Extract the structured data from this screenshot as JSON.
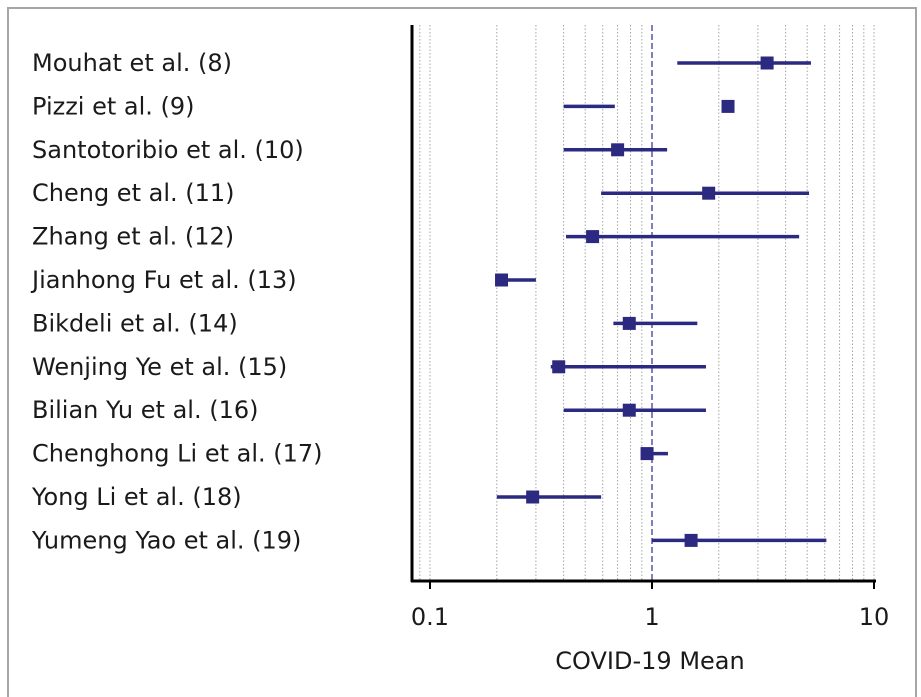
{
  "chart_data": {
    "type": "forest",
    "xlabel": "COVID-19 Mean",
    "x_scale": "log",
    "xlim": [
      0.07,
      14
    ],
    "reference_line": 1,
    "x_ticks": [
      {
        "value": 0.1,
        "label": "0.1"
      },
      {
        "value": 1,
        "label": "1"
      },
      {
        "value": 10,
        "label": "10"
      }
    ],
    "grid": "vertical minor log gridlines",
    "colors": {
      "marker": "#2b2a80",
      "axis": "#000000",
      "grid": "#9a9a9a",
      "reference": "#4a4aa0"
    },
    "studies": [
      {
        "label": "Mouhat et al. (8)",
        "estimate": 3.3,
        "ci_low": 1.3,
        "ci_high": 5.2
      },
      {
        "label": "Pizzi et al. (9)",
        "estimate": 2.2,
        "ci_low": 0.4,
        "ci_high": 0.68
      },
      {
        "label": "Santotoribio et al. (10)",
        "estimate": 0.7,
        "ci_low": 0.4,
        "ci_high": 1.17
      },
      {
        "label": "Cheng et al. (11)",
        "estimate": 1.8,
        "ci_low": 0.59,
        "ci_high": 5.1
      },
      {
        "label": "Zhang et al. (12)",
        "estimate": 0.54,
        "ci_low": 0.41,
        "ci_high": 4.6
      },
      {
        "label": "Jianhong Fu et al. (13)",
        "estimate": 0.21,
        "ci_low": 0.2,
        "ci_high": 0.3
      },
      {
        "label": "Bikdeli et al. (14)",
        "estimate": 0.79,
        "ci_low": 0.67,
        "ci_high": 1.6
      },
      {
        "label": "Wenjing Ye et al. (15)",
        "estimate": 0.38,
        "ci_low": 0.35,
        "ci_high": 1.75
      },
      {
        "label": "Bilian Yu et al. (16)",
        "estimate": 0.79,
        "ci_low": 0.4,
        "ci_high": 1.75
      },
      {
        "label": "Chenghong Li et al. (17)",
        "estimate": 0.95,
        "ci_low": 0.9,
        "ci_high": 1.18
      },
      {
        "label": "Yong Li et al. (18)",
        "estimate": 0.29,
        "ci_low": 0.2,
        "ci_high": 0.59
      },
      {
        "label": "Yumeng Yao et al. (19)",
        "estimate": 1.5,
        "ci_low": 1.0,
        "ci_high": 6.1
      }
    ]
  }
}
